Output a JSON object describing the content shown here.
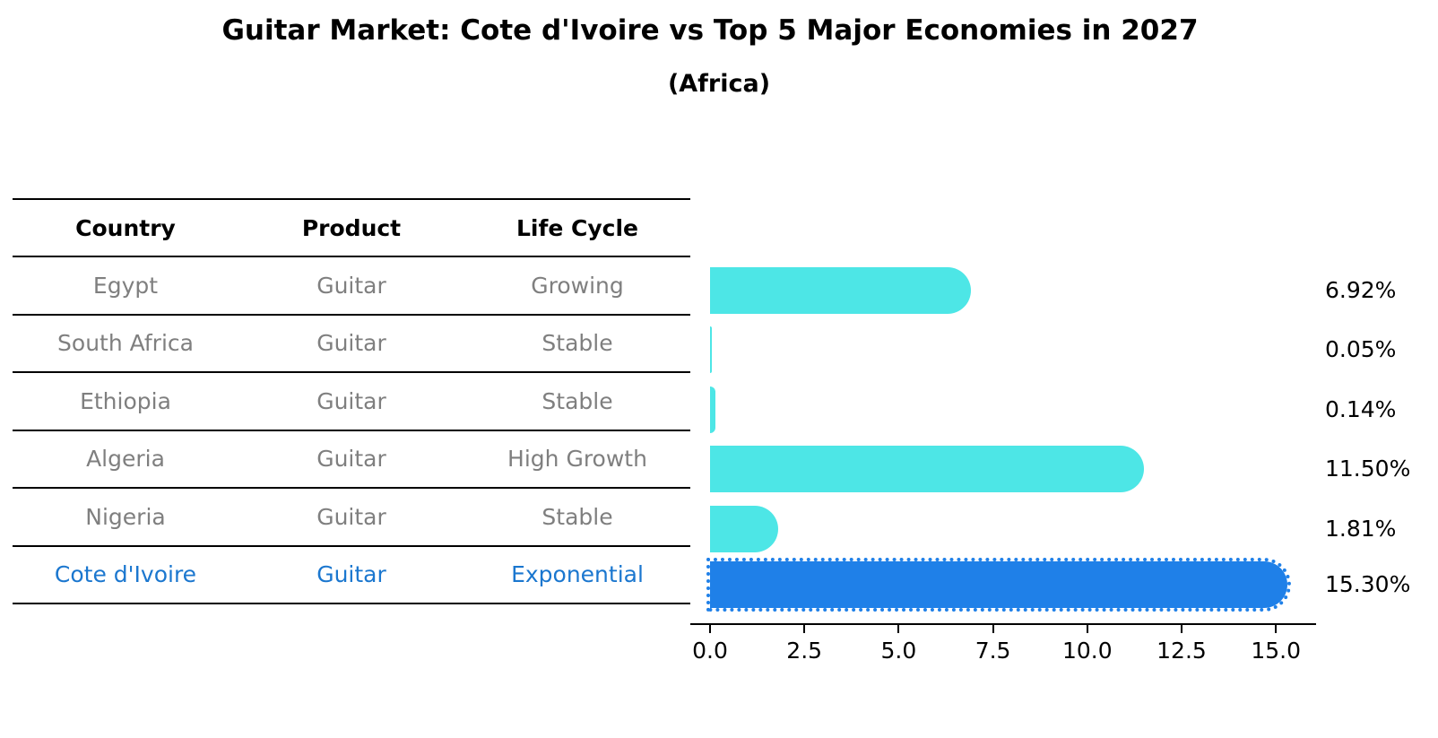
{
  "title": "Guitar Market: Cote d'Ivoire vs Top 5 Major Economies in 2027",
  "subtitle": "(Africa)",
  "table": {
    "headers": [
      "Country",
      "Product",
      "Life Cycle"
    ],
    "rows": [
      {
        "country": "Egypt",
        "product": "Guitar",
        "life_cycle": "Growing"
      },
      {
        "country": "South Africa",
        "product": "Guitar",
        "life_cycle": "Stable"
      },
      {
        "country": "Ethiopia",
        "product": "Guitar",
        "life_cycle": "Stable"
      },
      {
        "country": "Algeria",
        "product": "Guitar",
        "life_cycle": "High Growth"
      },
      {
        "country": "Nigeria",
        "product": "Guitar",
        "life_cycle": "Stable"
      },
      {
        "country": "Cote d'Ivoire",
        "product": "Guitar",
        "life_cycle": "Exponential"
      }
    ]
  },
  "chart_data": {
    "type": "bar",
    "orientation": "horizontal",
    "title": "Guitar Market: Cote d'Ivoire vs Top 5 Major Economies in 2027",
    "subtitle": "(Africa)",
    "categories": [
      "Egypt",
      "South Africa",
      "Ethiopia",
      "Algeria",
      "Nigeria",
      "Cote d'Ivoire"
    ],
    "values": [
      6.92,
      0.05,
      0.14,
      11.5,
      1.81,
      15.3
    ],
    "value_labels": [
      "6.92%",
      "0.05%",
      "0.14%",
      "11.50%",
      "1.81%",
      "15.30%"
    ],
    "x_ticks": [
      "0.0",
      "2.5",
      "5.0",
      "7.5",
      "10.0",
      "12.5",
      "15.0"
    ],
    "x_range": [
      0,
      16
    ],
    "grid": "off",
    "legend": "none",
    "highlight_index": 5,
    "bar_color": "#4DE6E6",
    "highlight_bar_color": "#1F80E8",
    "highlight_text_color": "#1B77CF",
    "table_text_color": "#7F7F7F"
  }
}
